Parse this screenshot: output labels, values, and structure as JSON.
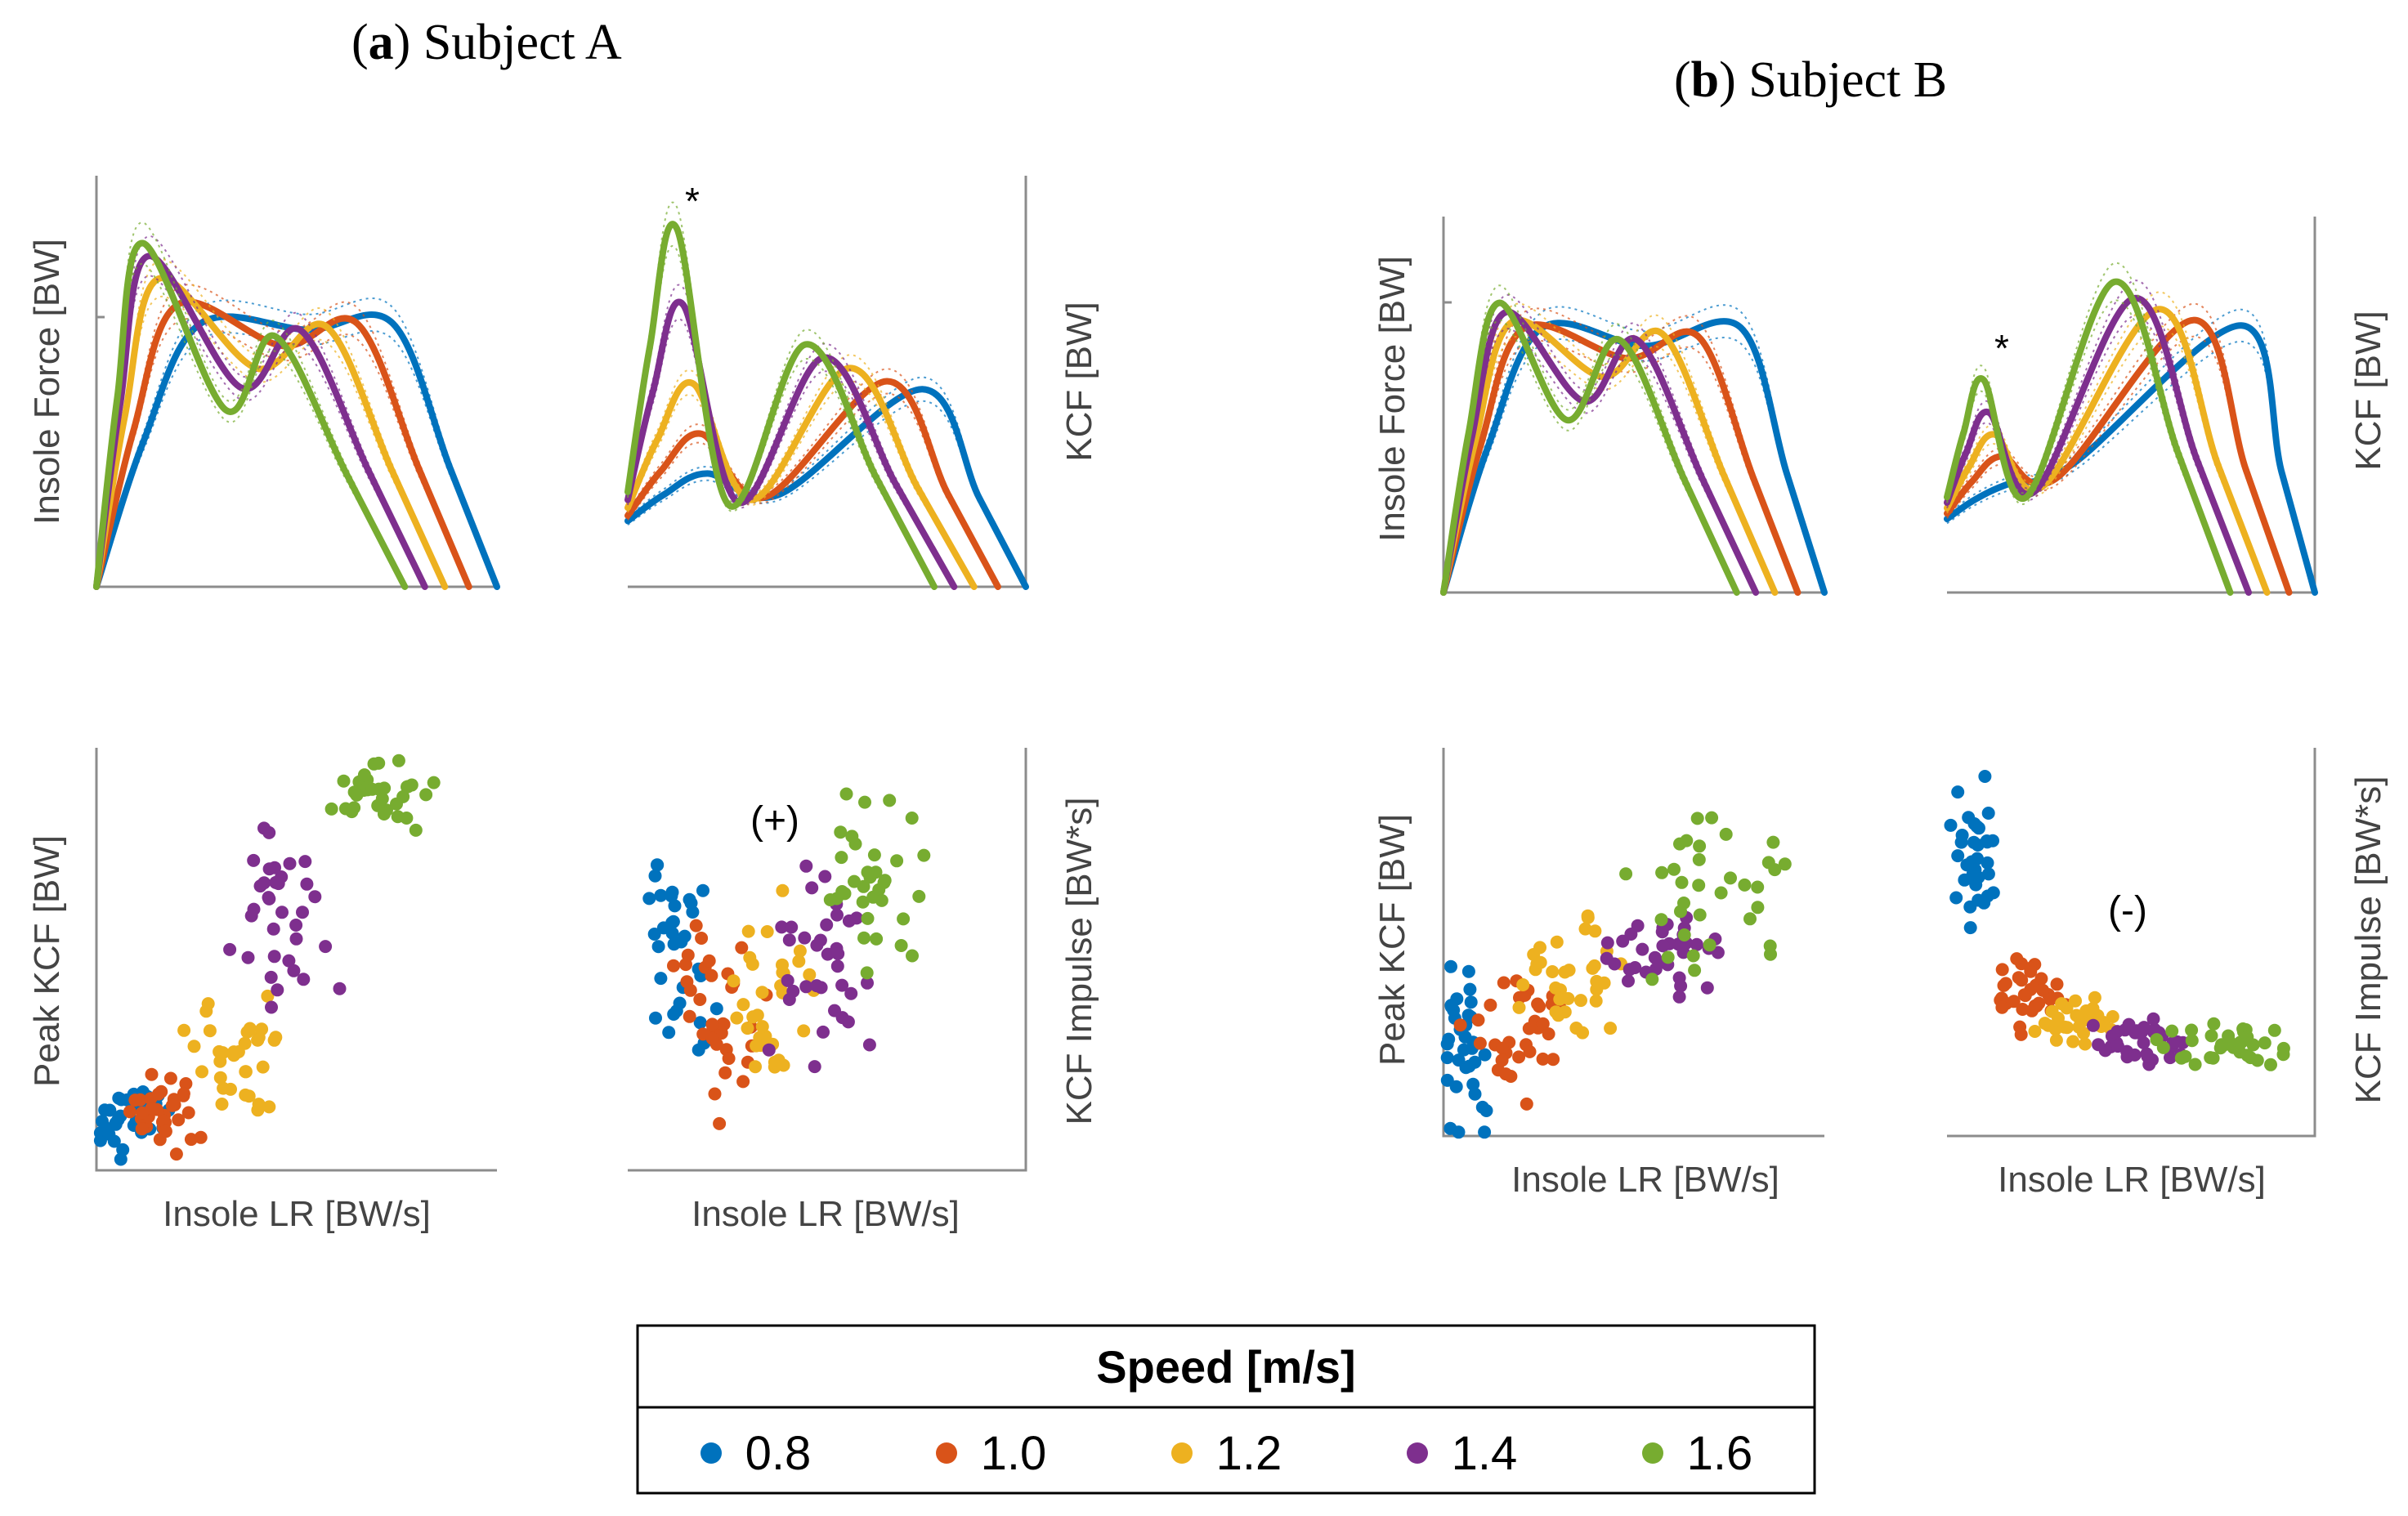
{
  "panels": [
    {
      "letter": "a",
      "title": "Subject A"
    },
    {
      "letter": "b",
      "title": "Subject B"
    }
  ],
  "legend": {
    "title": "Speed [m/s]",
    "entries": [
      {
        "label": "0.8",
        "color": "#0072BD"
      },
      {
        "label": "1.0",
        "color": "#D95319"
      },
      {
        "label": "1.2",
        "color": "#EDB120"
      },
      {
        "label": "1.4",
        "color": "#7E2F8E"
      },
      {
        "label": "1.6",
        "color": "#77AC30"
      }
    ]
  },
  "chart_data": [
    {
      "id": "A-insole-force",
      "type": "line",
      "panel": "a",
      "ylabel": "Insole Force [BW]",
      "xlabel": "",
      "series": [
        {
          "name": "0.8",
          "end": 1.0,
          "peak1": 0.82,
          "valley": 0.8,
          "peak2": 0.82,
          "p1x": 0.26,
          "vx": 0.53,
          "p2x": 0.74
        },
        {
          "name": "1.0",
          "end": 0.93,
          "peak1": 0.88,
          "valley": 0.75,
          "peak2": 0.82,
          "p1x": 0.22,
          "vx": 0.5,
          "p2x": 0.7
        },
        {
          "name": "1.2",
          "end": 0.87,
          "peak1": 0.96,
          "valley": 0.68,
          "peak2": 0.81,
          "p1x": 0.18,
          "vx": 0.46,
          "p2x": 0.66
        },
        {
          "name": "1.4",
          "end": 0.82,
          "peak1": 1.03,
          "valley": 0.62,
          "peak2": 0.8,
          "p1x": 0.16,
          "vx": 0.44,
          "p2x": 0.62
        },
        {
          "name": "1.6",
          "end": 0.77,
          "peak1": 1.07,
          "valley": 0.55,
          "peak2": 0.78,
          "p1x": 0.15,
          "vx": 0.42,
          "p2x": 0.58
        }
      ]
    },
    {
      "id": "A-kcf",
      "type": "line",
      "panel": "a",
      "ylabel": "KCF [BW]",
      "xlabel": "",
      "annotation": "*",
      "series": [
        {
          "name": "0.8",
          "end": 1.0,
          "base": 0.25,
          "peak1": 0.43,
          "valley": 0.35,
          "peak2": 0.75,
          "p1x": 0.2,
          "vx": 0.38,
          "p2x": 0.74
        },
        {
          "name": "1.0",
          "end": 0.93,
          "base": 0.27,
          "peak1": 0.58,
          "valley": 0.34,
          "peak2": 0.78,
          "p1x": 0.2,
          "vx": 0.37,
          "p2x": 0.7
        },
        {
          "name": "1.2",
          "end": 0.87,
          "base": 0.3,
          "peak1": 0.77,
          "valley": 0.33,
          "peak2": 0.83,
          "p1x": 0.19,
          "vx": 0.36,
          "p2x": 0.64
        },
        {
          "name": "1.4",
          "end": 0.82,
          "base": 0.33,
          "peak1": 1.07,
          "valley": 0.32,
          "peak2": 0.87,
          "p1x": 0.17,
          "vx": 0.34,
          "p2x": 0.6
        },
        {
          "name": "1.6",
          "end": 0.77,
          "base": 0.36,
          "peak1": 1.36,
          "valley": 0.31,
          "peak2": 0.92,
          "p1x": 0.16,
          "vx": 0.33,
          "p2x": 0.58
        }
      ]
    },
    {
      "id": "A-peak-kcf",
      "type": "scatter",
      "panel": "a",
      "ylabel": "Peak KCF [BW]",
      "xlabel": "Insole LR [BW/s]",
      "trend": "A",
      "xlim": [
        0,
        1
      ],
      "ylim": [
        0,
        1
      ]
    },
    {
      "id": "A-kcf-impulse",
      "type": "scatter",
      "panel": "a",
      "ylabel": "KCF Impulse [BW*s]",
      "xlabel": "Insole LR [BW/s]",
      "annotation": "(+)",
      "trend": "B",
      "xlim": [
        0,
        1
      ],
      "ylim": [
        0,
        1
      ]
    },
    {
      "id": "B-insole-force",
      "type": "line",
      "panel": "b",
      "ylabel": "Insole Force [BW]",
      "xlabel": "",
      "series": [
        {
          "name": "0.8",
          "end": 1.0,
          "peak1": 0.86,
          "valley": 0.8,
          "peak2": 0.86,
          "p1x": 0.26,
          "vx": 0.53,
          "p2x": 0.78
        },
        {
          "name": "1.0",
          "end": 0.93,
          "peak1": 0.86,
          "valley": 0.76,
          "peak2": 0.83,
          "p1x": 0.23,
          "vx": 0.52,
          "p2x": 0.72
        },
        {
          "name": "1.2",
          "end": 0.87,
          "peak1": 0.88,
          "valley": 0.7,
          "peak2": 0.84,
          "p1x": 0.21,
          "vx": 0.48,
          "p2x": 0.66
        },
        {
          "name": "1.4",
          "end": 0.82,
          "peak1": 0.91,
          "valley": 0.62,
          "peak2": 0.82,
          "p1x": 0.2,
          "vx": 0.45,
          "p2x": 0.62
        },
        {
          "name": "1.6",
          "end": 0.77,
          "peak1": 0.94,
          "valley": 0.56,
          "peak2": 0.82,
          "p1x": 0.19,
          "vx": 0.42,
          "p2x": 0.6
        }
      ]
    },
    {
      "id": "B-kcf",
      "type": "line",
      "panel": "b",
      "ylabel": "KCF [BW]",
      "xlabel": "",
      "annotation": "*",
      "series": [
        {
          "name": "0.8",
          "end": 1.0,
          "base": 0.27,
          "peak1": 0.4,
          "valley": 0.47,
          "peak2": 0.98,
          "p1x": 0.17,
          "vx": 0.34,
          "p2x": 0.8
        },
        {
          "name": "1.0",
          "end": 0.93,
          "base": 0.29,
          "peak1": 0.5,
          "valley": 0.42,
          "peak2": 1.0,
          "p1x": 0.16,
          "vx": 0.32,
          "p2x": 0.72
        },
        {
          "name": "1.2",
          "end": 0.87,
          "base": 0.31,
          "peak1": 0.58,
          "valley": 0.39,
          "peak2": 1.04,
          "p1x": 0.15,
          "vx": 0.3,
          "p2x": 0.66
        },
        {
          "name": "1.4",
          "end": 0.82,
          "base": 0.33,
          "peak1": 0.66,
          "valley": 0.37,
          "peak2": 1.08,
          "p1x": 0.14,
          "vx": 0.29,
          "p2x": 0.62
        },
        {
          "name": "1.6",
          "end": 0.77,
          "base": 0.35,
          "peak1": 0.78,
          "valley": 0.35,
          "peak2": 1.14,
          "p1x": 0.13,
          "vx": 0.28,
          "p2x": 0.59
        }
      ]
    },
    {
      "id": "B-peak-kcf",
      "type": "scatter",
      "panel": "b",
      "ylabel": "Peak KCF [BW]",
      "xlabel": "Insole LR [BW/s]",
      "trend": "C",
      "xlim": [
        0,
        1
      ],
      "ylim": [
        0,
        1
      ]
    },
    {
      "id": "B-kcf-impulse",
      "type": "scatter",
      "panel": "b",
      "ylabel": "KCF Impulse [BW*s]",
      "xlabel": "Insole LR [BW/s]",
      "annotation": "(-)",
      "trend": "D",
      "xlim": [
        0,
        1
      ],
      "ylim": [
        0,
        1
      ]
    }
  ]
}
